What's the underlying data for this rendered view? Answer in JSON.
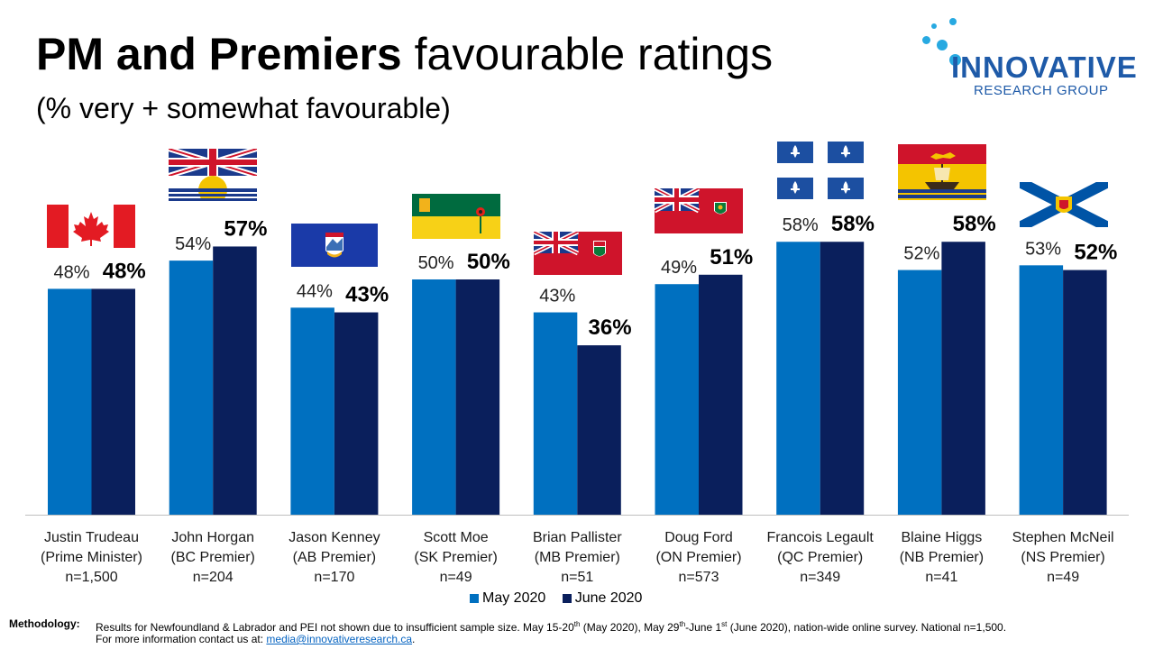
{
  "title": {
    "bold": "PM and Premiers",
    "light": "favourable ratings"
  },
  "subtitle": "(% very + somewhat favourable)",
  "logo": {
    "brand": "INNOVATIVE",
    "sub": "RESEARCH GROUP"
  },
  "colors": {
    "may": "#0070c0",
    "june": "#0a1f5c",
    "axis": "#bfbfbf"
  },
  "chart_data": {
    "type": "bar",
    "categories": [
      "Justin Trudeau",
      "John Horgan",
      "Jason Kenney",
      "Scott Moe",
      "Brian Pallister",
      "Doug Ford",
      "Francois Legault",
      "Blaine Higgs",
      "Stephen McNeil"
    ],
    "roles": [
      "(Prime Minister)",
      "(BC Premier)",
      "(AB Premier)",
      "(SK Premier)",
      "(MB Premier)",
      "(ON Premier)",
      "(QC Premier)",
      "(NB Premier)",
      "(NS Premier)"
    ],
    "samples": [
      "n=1,500",
      "n=204",
      "n=170",
      "n=49",
      "n=51",
      "n=573",
      "n=349",
      "n=41",
      "n=49"
    ],
    "flags": [
      "canada-flag",
      "bc-flag",
      "alberta-flag",
      "saskatchewan-flag",
      "manitoba-flag",
      "ontario-flag",
      "quebec-flag",
      "new-brunswick-flag",
      "nova-scotia-flag"
    ],
    "series": [
      {
        "name": "May 2020",
        "values": [
          48,
          54,
          44,
          50,
          43,
          49,
          58,
          52,
          53
        ],
        "labels": [
          "48%",
          "54%",
          "44%",
          "50%",
          "43%",
          "49%",
          "58%",
          "52%",
          "53%"
        ]
      },
      {
        "name": "June 2020",
        "values": [
          48,
          57,
          43,
          50,
          36,
          51,
          58,
          58,
          52
        ],
        "labels": [
          "48%",
          "57%",
          "43%",
          "50%",
          "36%",
          "51%",
          "58%",
          "58%",
          "52%"
        ]
      }
    ],
    "ylim": [
      0,
      100
    ],
    "legend": "bottom"
  },
  "footer": {
    "label": "Methodology:",
    "line1_a": "Results for Newfoundland & Labrador and PEI not shown due to insufficient sample size.  May 15-20",
    "line1_sup1": "th",
    "line1_b": " (May 2020),  May 29",
    "line1_sup2": "th",
    "line1_c": "-June 1",
    "line1_sup3": "st",
    "line1_d": " (June 2020), nation-wide online survey. National n=1,500.",
    "line2_a": "For more information contact us at: ",
    "line2_link": "media@innovativeresearch.ca",
    "line2_b": "."
  }
}
